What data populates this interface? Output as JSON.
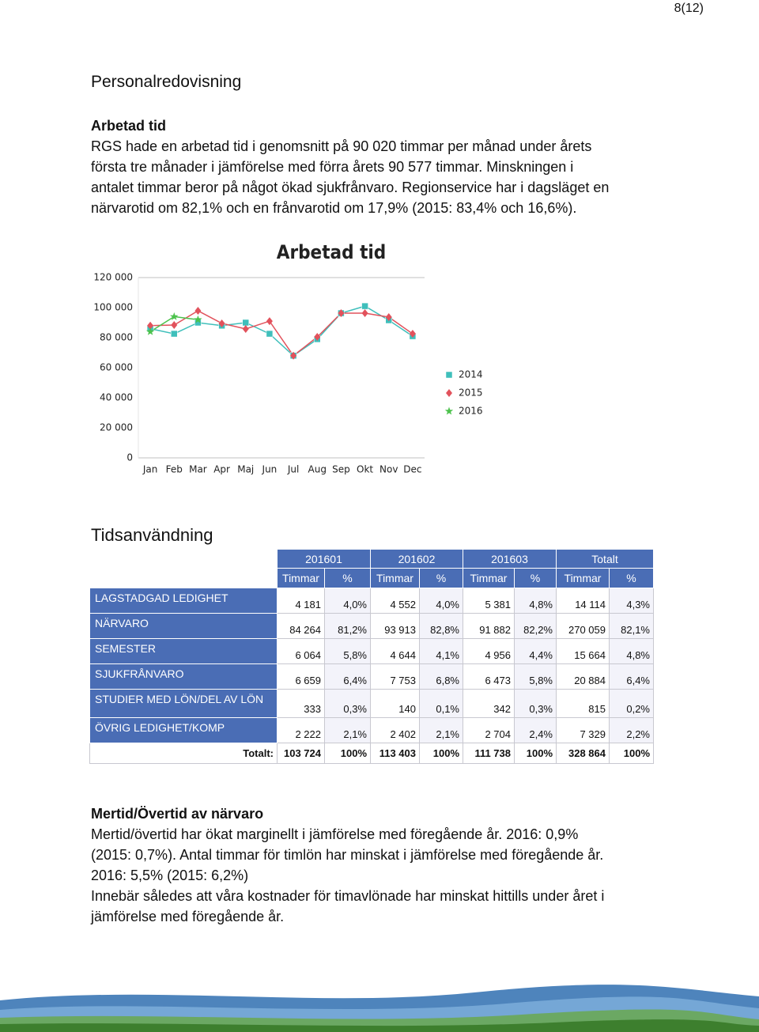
{
  "page_number": "8(12)",
  "heading": "Personalredovisning",
  "section1": {
    "title": "Arbetad tid",
    "lines": [
      "RGS hade en arbetad tid i genomsnitt på 90 020 timmar per månad under årets",
      "första tre månader i jämförelse med förra årets 90 577 timmar. Minskningen i",
      "antalet timmar beror på något ökad sjukfrånvaro. Regionservice har i dagsläget en",
      "närvarotid om 82,1% och en frånvarotid om 17,9% (2015: 83,4% och 16,6%)."
    ]
  },
  "chart_data": {
    "type": "line",
    "title": "Arbetad tid",
    "categories": [
      "Jan",
      "Feb",
      "Mar",
      "Apr",
      "Maj",
      "Jun",
      "Jul",
      "Aug",
      "Sep",
      "Okt",
      "Nov",
      "Dec"
    ],
    "series": [
      {
        "name": "2014",
        "color": "#3fbfbb",
        "marker": "square",
        "values": [
          86000,
          82600,
          90000,
          88000,
          90000,
          82600,
          68000,
          79000,
          96300,
          101000,
          91600,
          81000
        ]
      },
      {
        "name": "2015",
        "color": "#e2525c",
        "marker": "diamond",
        "values": [
          88000,
          88400,
          97900,
          89500,
          85800,
          91000,
          68000,
          80500,
          96300,
          96300,
          93700,
          82600
        ]
      },
      {
        "name": "2016",
        "color": "#4cc24c",
        "marker": "star",
        "values": [
          84000,
          94000,
          92000,
          null,
          null,
          null,
          null,
          null,
          null,
          null,
          null,
          null
        ]
      }
    ],
    "ylim": [
      0,
      120000
    ],
    "yticks": [
      0,
      {
        "value": 20000,
        "label": "20 000"
      },
      {
        "value": 40000,
        "label": "40 000"
      },
      {
        "value": 60000,
        "label": "60 000"
      },
      {
        "value": 80000,
        "label": "80 000"
      },
      {
        "value": 100000,
        "label": "100 000"
      },
      {
        "value": 120000,
        "label": "120 000"
      }
    ],
    "grid": false,
    "legend": "right"
  },
  "section2": {
    "title": "Tidsanvändning"
  },
  "table": {
    "groups": [
      "201601",
      "201602",
      "201603",
      "Totalt"
    ],
    "subheaders": [
      "Timmar",
      "%",
      "Timmar",
      "%",
      "Timmar",
      "%",
      "Timmar",
      "%"
    ],
    "rows": [
      {
        "label": "LAGSTADGAD LEDIGHET",
        "cells": [
          "4 181",
          "4,0%",
          "4 552",
          "4,0%",
          "5 381",
          "4,8%",
          "14 114",
          "4,3%"
        ]
      },
      {
        "label": "NÄRVARO",
        "cells": [
          "84 264",
          "81,2%",
          "93 913",
          "82,8%",
          "91 882",
          "82,2%",
          "270 059",
          "82,1%"
        ]
      },
      {
        "label": "SEMESTER",
        "cells": [
          "6 064",
          "5,8%",
          "4 644",
          "4,1%",
          "4 956",
          "4,4%",
          "15 664",
          "4,8%"
        ]
      },
      {
        "label": "SJUKFRÅNVARO",
        "cells": [
          "6 659",
          "6,4%",
          "7 753",
          "6,8%",
          "6 473",
          "5,8%",
          "20 884",
          "6,4%"
        ]
      },
      {
        "label": "STUDIER MED LÖN/DEL AV LÖN",
        "cells": [
          "333",
          "0,3%",
          "140",
          "0,1%",
          "342",
          "0,3%",
          "815",
          "0,2%"
        ]
      },
      {
        "label": "ÖVRIG LEDIGHET/KOMP",
        "cells": [
          "2 222",
          "2,1%",
          "2 402",
          "2,1%",
          "2 704",
          "2,4%",
          "7 329",
          "2,2%"
        ]
      }
    ],
    "total": {
      "label": "Totalt:",
      "cells": [
        "103 724",
        "100%",
        "113 403",
        "100%",
        "111 738",
        "100%",
        "328 864",
        "100%"
      ]
    }
  },
  "section3": {
    "title": "Mertid/Övertid av närvaro",
    "lines": [
      "Mertid/övertid har ökat marginellt i jämförelse med föregående år. 2016: 0,9%",
      "(2015: 0,7%). Antal timmar för timlön har minskat i jämförelse med föregående år.",
      "2016: 5,5% (2015: 6,2%)",
      "Innebär således att våra kostnader för timavlönade har minskat hittills under året i",
      "jämförelse med föregående år."
    ]
  }
}
